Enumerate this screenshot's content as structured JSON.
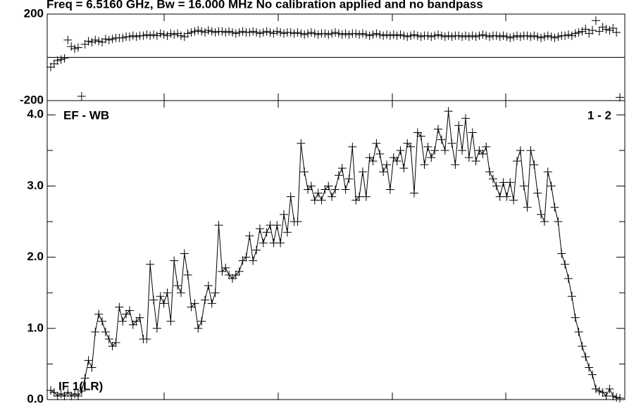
{
  "chart_data": [
    {
      "type": "line",
      "title": "Freq = 6.5160 GHz, Bw = 16.000 MHz  No calibration applied and no bandpass",
      "ylim": [
        -200,
        200
      ],
      "yticks": [
        -200,
        200
      ],
      "values": [
        -45,
        -30,
        -15,
        -10,
        -5,
        80,
        50,
        40,
        45,
        -180,
        60,
        75,
        70,
        80,
        75,
        70,
        85,
        80,
        85,
        90,
        90,
        90,
        95,
        95,
        100,
        95,
        100,
        100,
        105,
        100,
        105,
        100,
        110,
        105,
        100,
        110,
        105,
        110,
        100,
        95,
        110,
        115,
        120,
        125,
        120,
        115,
        125,
        120,
        115,
        120,
        120,
        115,
        120,
        115,
        110,
        115,
        120,
        115,
        115,
        120,
        115,
        110,
        115,
        120,
        115,
        110,
        120,
        115,
        110,
        115,
        115,
        110,
        115,
        110,
        105,
        110,
        115,
        110,
        105,
        110,
        110,
        105,
        110,
        115,
        110,
        105,
        110,
        105,
        110,
        110,
        105,
        110,
        105,
        100,
        105,
        110,
        105,
        100,
        105,
        100,
        105,
        100,
        105,
        100,
        95,
        100,
        105,
        100,
        95,
        100,
        100,
        95,
        100,
        105,
        100,
        95,
        100,
        95,
        100,
        100,
        95,
        100,
        95,
        100,
        95,
        100,
        105,
        100,
        95,
        100,
        100,
        95,
        100,
        95,
        90,
        95,
        100,
        95,
        100,
        100,
        95,
        100,
        95,
        90,
        95,
        100,
        95,
        90,
        95,
        100,
        100,
        105,
        100,
        110,
        115,
        120,
        130,
        110,
        125,
        170,
        120,
        140,
        130,
        125,
        135,
        115,
        -185
      ]
    },
    {
      "type": "line",
      "ylim": [
        0,
        4.2
      ],
      "yticks": [
        {
          "value": 0,
          "label": "0.0"
        },
        {
          "value": 1,
          "label": "1.0"
        },
        {
          "value": 2,
          "label": "2.0"
        },
        {
          "value": 3,
          "label": "3.0"
        },
        {
          "value": 4,
          "label": "4.0"
        }
      ],
      "annotations": [
        "EF - WB",
        "1 - 2",
        "IF 1(LR)"
      ],
      "values": [
        0.13,
        0.1,
        0.05,
        0.08,
        0.05,
        0.1,
        0.05,
        0.08,
        0.05,
        0.12,
        0.3,
        0.55,
        0.45,
        0.95,
        1.2,
        1.1,
        0.95,
        0.85,
        0.75,
        0.8,
        1.3,
        1.1,
        1.2,
        1.25,
        1.05,
        1.1,
        1.15,
        0.85,
        0.85,
        1.9,
        1.4,
        1.0,
        1.45,
        1.35,
        1.5,
        1.1,
        1.95,
        1.6,
        1.5,
        2.05,
        1.75,
        1.3,
        1.35,
        1.0,
        1.1,
        1.4,
        1.6,
        1.35,
        1.5,
        2.45,
        1.8,
        1.85,
        1.75,
        1.7,
        1.75,
        1.8,
        1.95,
        2.0,
        2.3,
        1.95,
        2.1,
        2.4,
        2.2,
        2.35,
        2.45,
        2.2,
        2.45,
        2.2,
        2.6,
        2.35,
        2.85,
        2.5,
        2.5,
        3.6,
        3.2,
        2.95,
        3.0,
        2.8,
        2.9,
        2.8,
        2.95,
        3.0,
        2.85,
        2.95,
        3.15,
        3.25,
        2.95,
        3.1,
        3.55,
        2.8,
        2.85,
        3.2,
        2.85,
        3.4,
        3.35,
        3.6,
        3.45,
        3.2,
        3.3,
        2.95,
        3.4,
        3.35,
        3.5,
        3.25,
        3.6,
        3.55,
        2.9,
        3.75,
        3.7,
        3.3,
        3.55,
        3.4,
        3.5,
        3.8,
        3.65,
        3.5,
        4.05,
        3.6,
        3.3,
        3.85,
        3.5,
        3.95,
        3.4,
        3.75,
        3.35,
        3.5,
        3.45,
        3.55,
        3.2,
        3.1,
        3.0,
        2.85,
        3.05,
        2.85,
        3.05,
        2.8,
        3.35,
        3.5,
        3.0,
        2.7,
        3.5,
        3.3,
        2.9,
        2.6,
        2.5,
        3.2,
        3.0,
        2.7,
        2.5,
        2.05,
        1.9,
        1.7,
        1.45,
        1.15,
        0.95,
        0.75,
        0.6,
        0.45,
        0.35,
        0.15,
        0.12,
        0.1,
        0.05,
        0.15,
        0.05,
        0.03,
        0.02
      ]
    }
  ]
}
